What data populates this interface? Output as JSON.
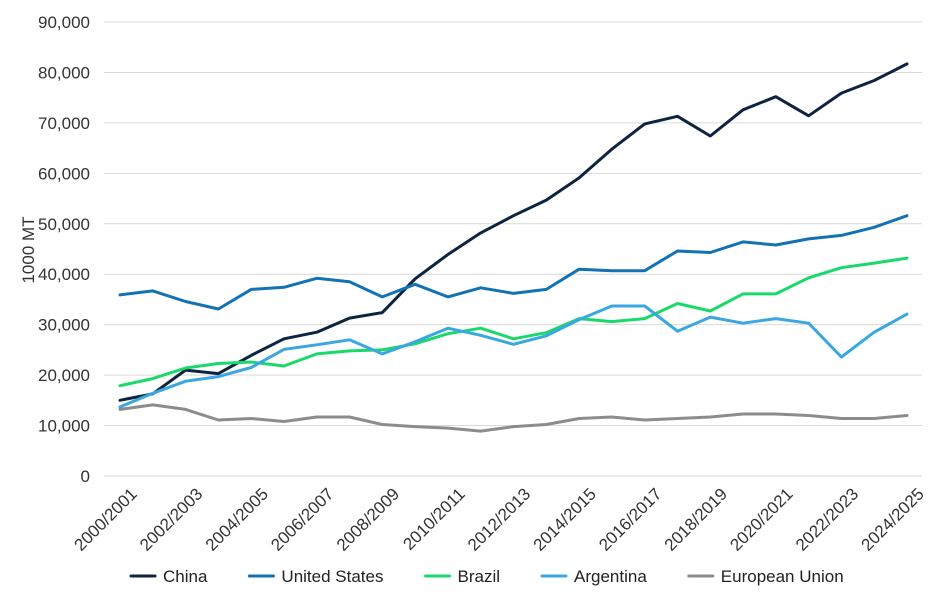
{
  "chart_data": {
    "type": "line",
    "title": "",
    "xlabel": "",
    "ylabel": "1000 MT",
    "ylim": [
      0,
      90000
    ],
    "yticks": [
      0,
      10000,
      20000,
      30000,
      40000,
      50000,
      60000,
      70000,
      80000,
      90000
    ],
    "ytick_labels": [
      "0",
      "10,000",
      "20,000",
      "30,000",
      "40,000",
      "50,000",
      "60,000",
      "70,000",
      "80,000",
      "90,000"
    ],
    "grid": true,
    "legend_position": "bottom",
    "x": [
      "2000/2001",
      "2001/2002",
      "2002/2003",
      "2003/2004",
      "2004/2005",
      "2005/2006",
      "2006/2007",
      "2007/2008",
      "2008/2009",
      "2009/2010",
      "2010/2011",
      "2011/2012",
      "2012/2013",
      "2013/2014",
      "2014/2015",
      "2015/2016",
      "2016/2017",
      "2017/2018",
      "2018/2019",
      "2019/2020",
      "2020/2021",
      "2021/2022",
      "2022/2023",
      "2023/2024",
      "2024/2025"
    ],
    "xtick_labels": [
      "2000/2001",
      "2002/2003",
      "2004/2005",
      "2006/2007",
      "2008/2009",
      "2010/2011",
      "2012/2013",
      "2014/2015",
      "2016/2017",
      "2018/2019",
      "2020/2021",
      "2022/2023",
      "2024/2025"
    ],
    "series": [
      {
        "name": "China",
        "color": "#0d2440",
        "values": [
          15000,
          16300,
          21000,
          20300,
          23900,
          27200,
          28500,
          31300,
          32400,
          39100,
          43900,
          48200,
          51600,
          54700,
          59100,
          64800,
          69800,
          71300,
          67400,
          72600,
          75200,
          71400,
          75900,
          78400,
          81700
        ]
      },
      {
        "name": "United States",
        "color": "#1372b4",
        "values": [
          35900,
          36700,
          34600,
          33100,
          37000,
          37400,
          39200,
          38500,
          35500,
          38000,
          35500,
          37300,
          36200,
          37000,
          41000,
          40700,
          40700,
          44600,
          44300,
          46400,
          45800,
          47000,
          47700,
          49300,
          51600
        ]
      },
      {
        "name": "Brazil",
        "color": "#1ad96b",
        "values": [
          17900,
          19300,
          21400,
          22300,
          22600,
          21800,
          24200,
          24800,
          25000,
          26200,
          28200,
          29300,
          27200,
          28400,
          31200,
          30600,
          31200,
          34200,
          32700,
          36100,
          36100,
          39300,
          41300,
          42200,
          43200
        ]
      },
      {
        "name": "Argentina",
        "color": "#3aa7e2",
        "values": [
          13700,
          16400,
          18800,
          19700,
          21500,
          25100,
          26000,
          27000,
          24200,
          26600,
          29300,
          27900,
          26100,
          27800,
          31000,
          33700,
          33700,
          28700,
          31500,
          30300,
          31200,
          30300,
          23600,
          28500,
          32100
        ]
      },
      {
        "name": "European Union",
        "color": "#8c8c8c",
        "values": [
          13200,
          14100,
          13200,
          11100,
          11400,
          10800,
          11700,
          11700,
          10200,
          9800,
          9500,
          8900,
          9800,
          10200,
          11400,
          11700,
          11100,
          11400,
          11700,
          12300,
          12300,
          12000,
          11400,
          11400,
          12000
        ]
      }
    ]
  }
}
